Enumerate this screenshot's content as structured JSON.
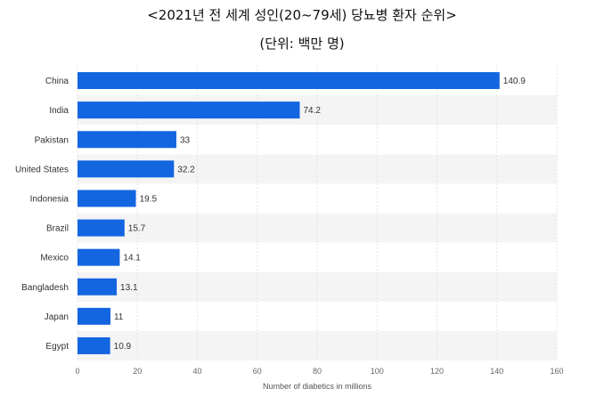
{
  "title": "<2021년 전 세계 성인(20~79세) 당뇨병 환자 순위>",
  "subtitle": "(단위: 백만 명)",
  "chart_data": {
    "type": "bar",
    "orientation": "horizontal",
    "categories": [
      "China",
      "India",
      "Pakistan",
      "United States",
      "Indonesia",
      "Brazil",
      "Mexico",
      "Bangladesh",
      "Japan",
      "Egypt"
    ],
    "values": [
      140.9,
      74.2,
      33,
      32.2,
      19.5,
      15.7,
      14.1,
      13.1,
      11,
      10.9
    ],
    "value_labels": [
      "140.9",
      "74.2",
      "33",
      "32.2",
      "19.5",
      "15.7",
      "14.1",
      "13.1",
      "11",
      "10.9"
    ],
    "xlabel": "Number of diabetics in millions",
    "xlim": [
      0,
      160
    ],
    "xticks": [
      0,
      20,
      40,
      60,
      80,
      100,
      120,
      140,
      160
    ],
    "bar_color": "#1466e0",
    "band_color": "#f4f4f4",
    "grid": "vertical"
  }
}
